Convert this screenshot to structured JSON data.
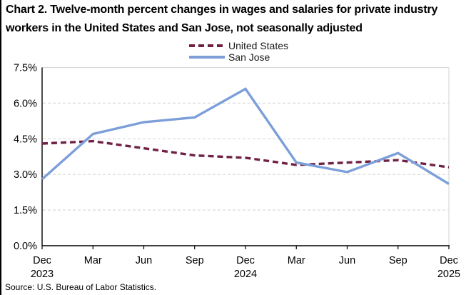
{
  "title": "Chart 2. Twelve-month percent changes in wages and salaries for private industry workers in the United States and San Jose, not seasonally adjusted",
  "source": "Source: U.S. Bureau of Labor Statistics.",
  "colors": {
    "us_line": "#702245",
    "san_jose_line": "#7C9FD9",
    "grid": "#D9D9D9",
    "axis": "#000000",
    "text": "#000000"
  },
  "chart_data": {
    "type": "line",
    "title": "Chart 2. Twelve-month percent changes in wages and salaries for private industry workers in the United States and San Jose, not seasonally adjusted",
    "xlabel": "",
    "ylabel": "",
    "ylim": [
      0,
      7.5
    ],
    "y_tick_step": 1.5,
    "y_tick_labels": [
      "0.0%",
      "1.5%",
      "3.0%",
      "4.5%",
      "6.0%",
      "7.5%"
    ],
    "x_tick_months": [
      "Dec",
      "Mar",
      "Jun",
      "Sep",
      "Dec",
      "Mar",
      "Jun",
      "Sep",
      "Dec"
    ],
    "x_tick_years": [
      "2023",
      "",
      "",
      "",
      "2024",
      "",
      "",
      "",
      "2025"
    ],
    "grid": true,
    "legend_position": "top-center",
    "series": [
      {
        "name": "United States",
        "style": "dashed",
        "color": "#702245",
        "values": [
          4.3,
          4.4,
          4.1,
          3.8,
          3.7,
          3.4,
          3.5,
          3.6,
          3.3
        ]
      },
      {
        "name": "San Jose",
        "style": "solid",
        "color": "#7C9FD9",
        "values": [
          2.8,
          4.7,
          5.2,
          5.4,
          6.6,
          3.5,
          3.1,
          3.9,
          2.6
        ]
      }
    ]
  }
}
